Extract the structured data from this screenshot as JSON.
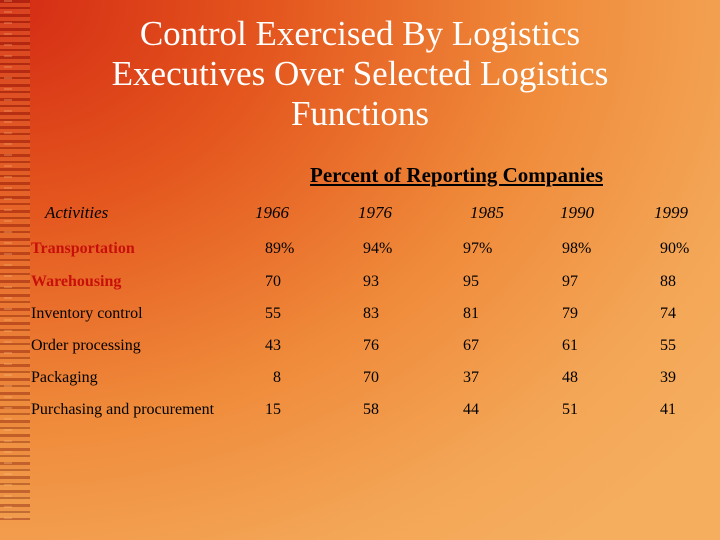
{
  "slide": {
    "title_line1": "Control Exercised By Logistics",
    "title_line2": "Executives Over Selected Logistics",
    "title_line3": "Functions",
    "subtitle": "Percent of Reporting Companies"
  },
  "table": {
    "headers": [
      "Activities",
      "1966",
      "1976",
      "1985",
      "1990",
      "1999"
    ],
    "rows": [
      {
        "activity": "Transportation",
        "values": [
          "89%",
          "94%",
          "97%",
          "98%",
          "90%"
        ]
      },
      {
        "activity": "Warehousing",
        "values": [
          "70",
          "93",
          "95",
          "97",
          "88"
        ]
      },
      {
        "activity": "Inventory control",
        "values": [
          "55",
          "83",
          "81",
          "79",
          "74"
        ]
      },
      {
        "activity": "Order processing",
        "values": [
          "43",
          "76",
          "67",
          "61",
          "55"
        ]
      },
      {
        "activity": "Packaging",
        "values": [
          "8",
          "70",
          "37",
          "48",
          "39"
        ]
      },
      {
        "activity": "Purchasing and procurement",
        "values": [
          "15",
          "58",
          "44",
          "51",
          "41"
        ]
      }
    ]
  },
  "colors": {
    "title_text": "#ffffff",
    "highlight_text": "#c8100a",
    "background_start": "#d42a14",
    "background_end": "#f5ae5e"
  }
}
